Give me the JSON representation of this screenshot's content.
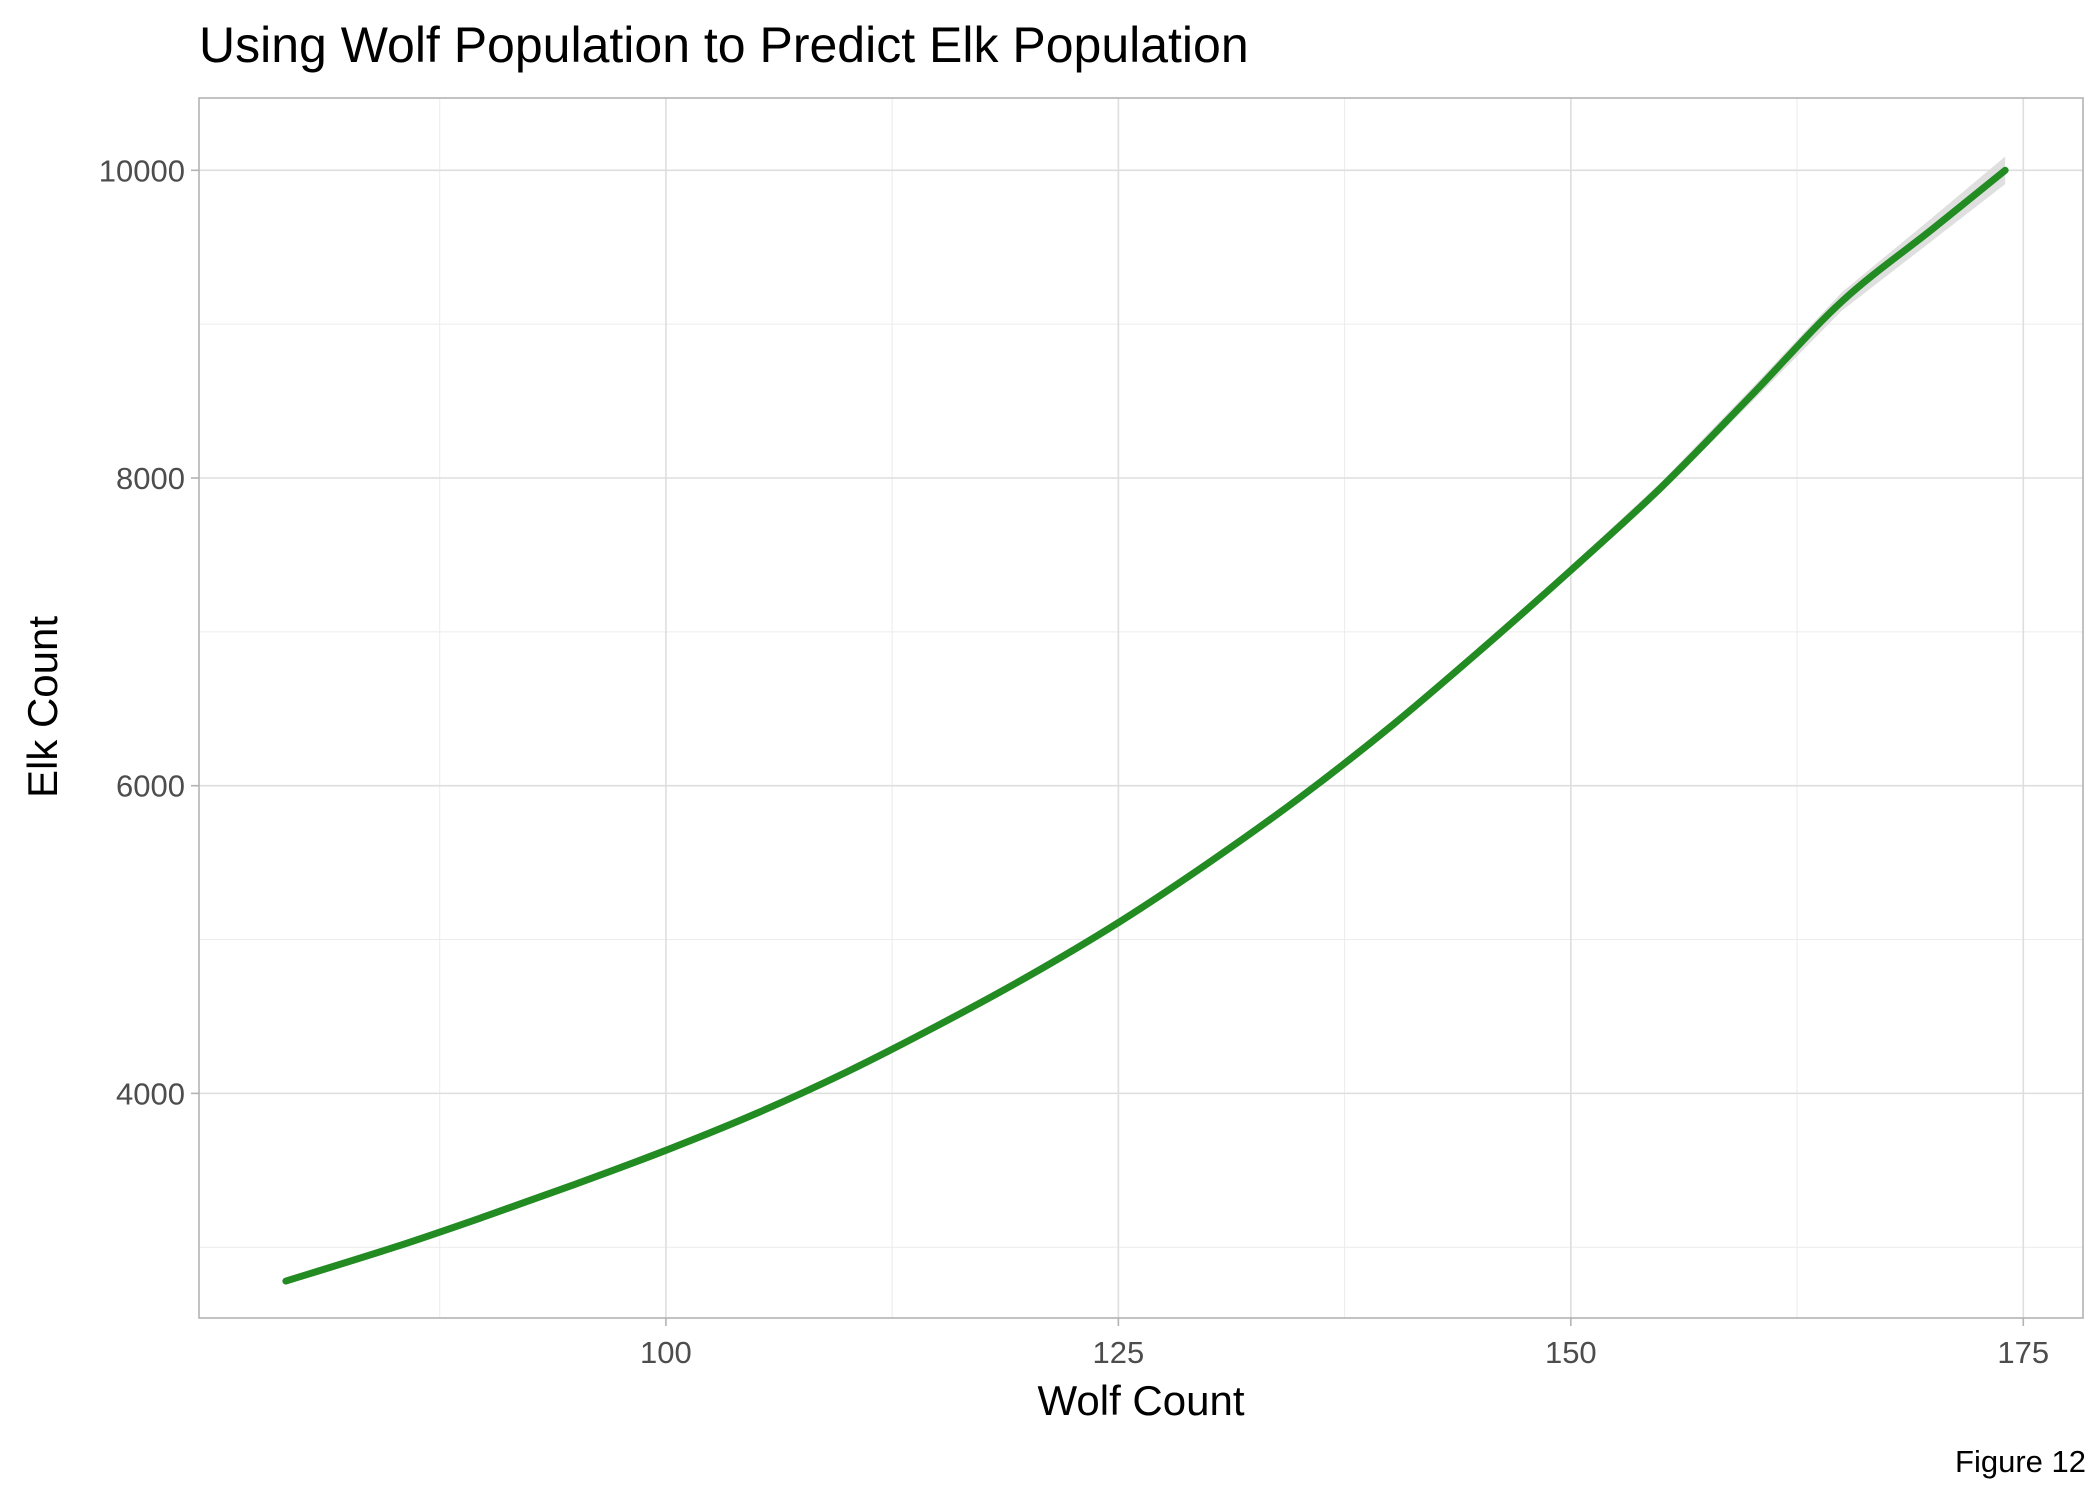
{
  "chart_data": {
    "type": "line",
    "title": "Using Wolf Population to Predict Elk Population",
    "xlabel": "Wolf Count",
    "ylabel": "Elk Count",
    "caption": "Figure 12",
    "xlim": [
      74.2,
      178.3
    ],
    "ylim": [
      2540,
      10470
    ],
    "x_ticks": [
      100,
      125,
      150,
      175
    ],
    "y_ticks": [
      4000,
      6000,
      8000,
      10000
    ],
    "grid": true,
    "legend": "none",
    "series": [
      {
        "line_color": "#228b22",
        "band_color": "#d9d9d9",
        "points": [
          {
            "x": 79,
            "y": 2780
          },
          {
            "x": 85,
            "y": 3000
          },
          {
            "x": 90,
            "y": 3200
          },
          {
            "x": 95,
            "y": 3410
          },
          {
            "x": 100,
            "y": 3630
          },
          {
            "x": 105,
            "y": 3870
          },
          {
            "x": 110,
            "y": 4140
          },
          {
            "x": 115,
            "y": 4440
          },
          {
            "x": 120,
            "y": 4760
          },
          {
            "x": 125,
            "y": 5110
          },
          {
            "x": 130,
            "y": 5500
          },
          {
            "x": 135,
            "y": 5920
          },
          {
            "x": 140,
            "y": 6380
          },
          {
            "x": 145,
            "y": 6880
          },
          {
            "x": 150,
            "y": 7400
          },
          {
            "x": 155,
            "y": 7940
          },
          {
            "x": 160,
            "y": 8540
          },
          {
            "x": 165,
            "y": 9150
          },
          {
            "x": 170,
            "y": 9620
          },
          {
            "x": 174,
            "y": 10000
          }
        ],
        "band_halfwidth": [
          20,
          15,
          12,
          10,
          9,
          9,
          9,
          9,
          9,
          10,
          12,
          14,
          18,
          22,
          28,
          35,
          45,
          60,
          75,
          90
        ]
      }
    ]
  }
}
